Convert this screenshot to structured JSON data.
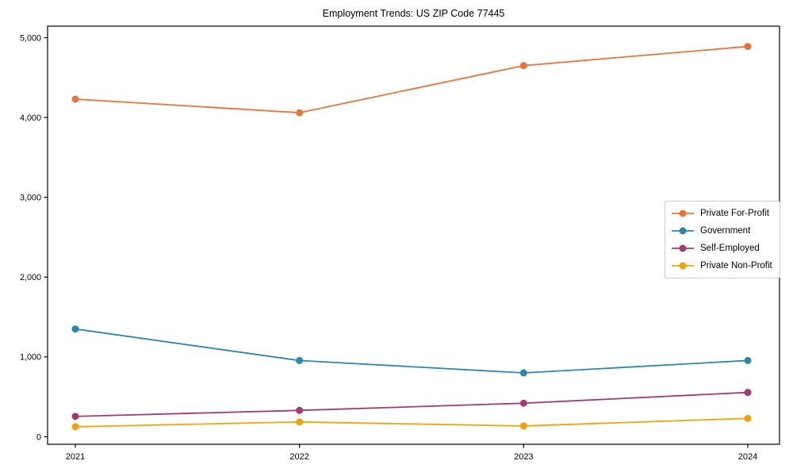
{
  "chart_data": {
    "type": "line",
    "title": "Employment Trends: US ZIP Code 77445",
    "categories": [
      "2021",
      "2022",
      "2023",
      "2024"
    ],
    "series": [
      {
        "name": "Private For-Profit",
        "color": "#E8743B",
        "values": [
          4230,
          4060,
          4650,
          4890
        ]
      },
      {
        "name": "Government",
        "color": "#2E86AB",
        "values": [
          1350,
          955,
          800,
          955
        ]
      },
      {
        "name": "Self-Employed",
        "color": "#A23B72",
        "values": [
          255,
          330,
          420,
          555
        ]
      },
      {
        "name": "Private Non-Profit",
        "color": "#F1A208",
        "values": [
          125,
          185,
          135,
          230
        ]
      }
    ],
    "xlabel": "",
    "ylabel": "",
    "ylim": [
      0,
      5000
    ],
    "yticks": [
      0,
      1000,
      2000,
      3000,
      4000,
      5000
    ],
    "ytick_labels": [
      "0",
      "1,000",
      "2,000",
      "3,000",
      "4,000",
      "5,000"
    ],
    "grid": false,
    "legend_position": "right-middle",
    "axis_color": "#000000"
  }
}
